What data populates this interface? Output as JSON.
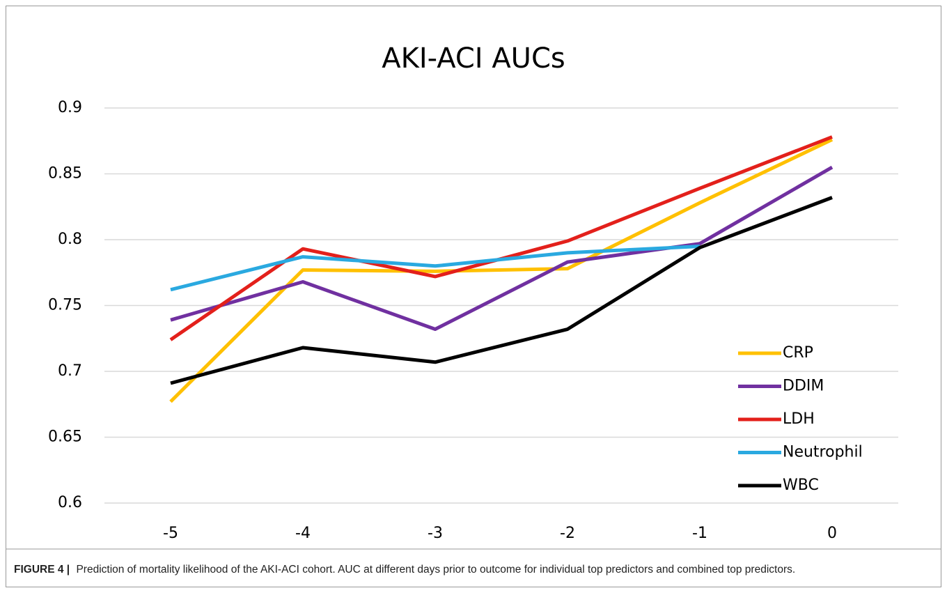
{
  "chart_data": {
    "type": "line",
    "title": "AKI-ACI AUCs",
    "x": [
      -5,
      -4,
      -3,
      -2,
      -1,
      0
    ],
    "xlim": [
      -5.5,
      0.5
    ],
    "xticks": [
      -5,
      -4,
      -3,
      -2,
      -1,
      0
    ],
    "ylim": [
      0.6,
      0.9
    ],
    "yticks": [
      0.6,
      0.65,
      0.7,
      0.75,
      0.8,
      0.85,
      0.9
    ],
    "grid": true,
    "legend": "lower right",
    "series": [
      {
        "name": "CRP",
        "color": "#ffc000",
        "values": [
          0.677,
          0.777,
          0.776,
          0.778,
          0.828,
          0.876
        ]
      },
      {
        "name": "DDIM",
        "color": "#7030a0",
        "values": [
          0.739,
          0.768,
          0.732,
          0.783,
          0.797,
          0.855
        ]
      },
      {
        "name": "LDH",
        "color": "#e3201b",
        "values": [
          0.724,
          0.793,
          0.772,
          0.799,
          0.839,
          0.878
        ]
      },
      {
        "name": "Neutrophil",
        "color": "#2aa9e0",
        "values": [
          0.762,
          0.787,
          0.78,
          0.79,
          0.795,
          null
        ]
      },
      {
        "name": "WBC",
        "color": "#000000",
        "values": [
          0.691,
          0.718,
          0.707,
          0.732,
          0.794,
          0.832
        ]
      }
    ]
  },
  "caption": {
    "label": "FIGURE 4 |",
    "text": "Prediction of mortality likelihood of the AKI-ACI cohort. AUC at different days prior to outcome for individual top predictors and combined top predictors."
  }
}
